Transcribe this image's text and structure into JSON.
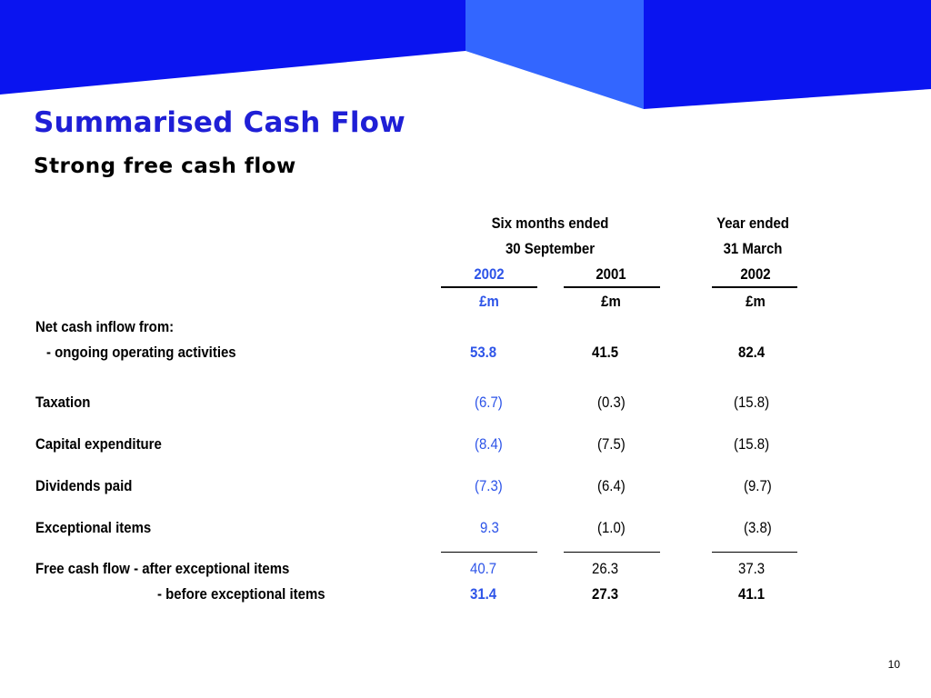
{
  "title": "Summarised Cash Flow",
  "subtitle": "Strong free cash flow",
  "header": {
    "period1_line1": "Six months ended",
    "period1_line2": "30 September",
    "period2_line1": "Year ended",
    "period2_line2": "31 March",
    "years": [
      "2002",
      "2001",
      "2002"
    ],
    "units": [
      "£m",
      "£m",
      "£m"
    ]
  },
  "section_label": "Net cash inflow from:",
  "rows": [
    {
      "label": "- ongoing operating activities",
      "values": [
        "53.8",
        "41.5",
        "82.4"
      ]
    },
    {
      "label": "Taxation",
      "values": [
        "(6.7)",
        "(0.3)",
        "(15.8)"
      ]
    },
    {
      "label": "Capital expenditure",
      "values": [
        "(8.4)",
        "(7.5)",
        "(15.8)"
      ]
    },
    {
      "label": "Dividends paid",
      "values": [
        "(7.3)",
        "(6.4)",
        "(9.7)"
      ]
    },
    {
      "label": "Exceptional items",
      "values": [
        "9.3",
        "(1.0)",
        "(3.8)"
      ]
    },
    {
      "label": "Free cash flow - after exceptional items",
      "values": [
        "40.7",
        "26.3",
        "37.3"
      ]
    },
    {
      "label": "- before exceptional items",
      "values": [
        "31.4",
        "27.3",
        "41.1"
      ]
    }
  ],
  "page_number": "10",
  "colors": {
    "banner_blue": "#0a14f0",
    "banner_light": "#3366ff",
    "title_blue": "#1f1fd6",
    "highlight_blue": "#2d54e8"
  }
}
